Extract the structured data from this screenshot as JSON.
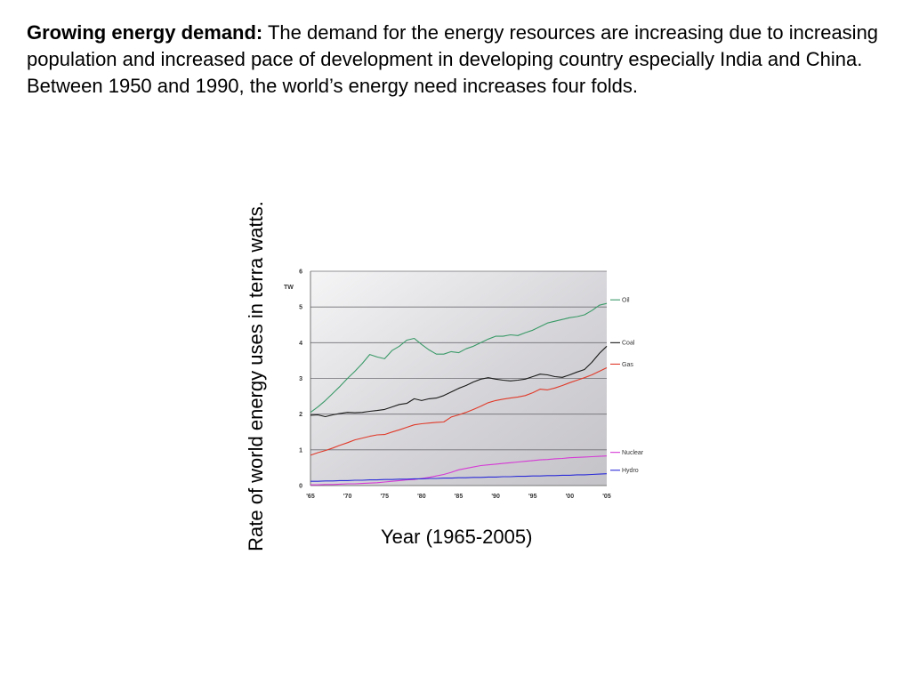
{
  "paragraph": {
    "heading": "Growing energy demand:",
    "text": " The demand for the energy resources are increasing due to increasing population and increased pace of development in developing country especially India and China. Between 1950 and 1990, the world’s energy need increases four folds."
  },
  "ylabel": "Rate of world energy uses in terra watts.",
  "xlabel": "Year (1965-2005)",
  "chart_data": {
    "type": "line",
    "unit_label": "TW",
    "xlim": [
      1965,
      2005
    ],
    "ylim": [
      0,
      6
    ],
    "grid": true,
    "legend": "right, at each line end",
    "x_ticks": [
      "'65",
      "'70",
      "'75",
      "'80",
      "'85",
      "'90",
      "'95",
      "'00",
      "'05"
    ],
    "y_ticks": [
      "0",
      "1",
      "2",
      "3",
      "4",
      "5",
      "6"
    ],
    "x": [
      1965,
      1966,
      1967,
      1968,
      1969,
      1970,
      1971,
      1972,
      1973,
      1974,
      1975,
      1976,
      1977,
      1978,
      1979,
      1980,
      1981,
      1982,
      1983,
      1984,
      1985,
      1986,
      1987,
      1988,
      1989,
      1990,
      1991,
      1992,
      1993,
      1994,
      1995,
      1996,
      1997,
      1998,
      1999,
      2000,
      2001,
      2002,
      2003,
      2004,
      2005
    ],
    "series": [
      {
        "name": "Oil",
        "color": "#3a9a68",
        "values": [
          2.05,
          2.2,
          2.38,
          2.58,
          2.78,
          3.0,
          3.2,
          3.42,
          3.67,
          3.6,
          3.55,
          3.78,
          3.9,
          4.07,
          4.12,
          3.95,
          3.8,
          3.68,
          3.68,
          3.75,
          3.72,
          3.83,
          3.9,
          4.0,
          4.1,
          4.18,
          4.18,
          4.22,
          4.2,
          4.28,
          4.35,
          4.45,
          4.55,
          4.6,
          4.65,
          4.7,
          4.73,
          4.78,
          4.9,
          5.05,
          5.1
        ]
      },
      {
        "name": "Coal",
        "color": "#1a1a1a",
        "values": [
          1.97,
          1.98,
          1.93,
          1.98,
          2.02,
          2.05,
          2.04,
          2.05,
          2.08,
          2.1,
          2.13,
          2.2,
          2.27,
          2.3,
          2.43,
          2.38,
          2.43,
          2.45,
          2.52,
          2.62,
          2.72,
          2.8,
          2.9,
          2.98,
          3.02,
          2.98,
          2.95,
          2.93,
          2.95,
          2.98,
          3.05,
          3.12,
          3.1,
          3.05,
          3.03,
          3.1,
          3.18,
          3.25,
          3.45,
          3.7,
          3.9
        ]
      },
      {
        "name": "Gas",
        "color": "#e03a2a",
        "values": [
          0.85,
          0.92,
          0.98,
          1.05,
          1.13,
          1.2,
          1.28,
          1.33,
          1.38,
          1.42,
          1.43,
          1.5,
          1.56,
          1.63,
          1.7,
          1.73,
          1.75,
          1.77,
          1.78,
          1.92,
          1.98,
          2.05,
          2.13,
          2.22,
          2.32,
          2.38,
          2.42,
          2.45,
          2.48,
          2.52,
          2.6,
          2.7,
          2.68,
          2.73,
          2.8,
          2.88,
          2.95,
          3.02,
          3.1,
          3.2,
          3.3
        ]
      },
      {
        "name": "Nuclear",
        "color": "#d53ad5",
        "values": [
          0.02,
          0.02,
          0.03,
          0.03,
          0.04,
          0.05,
          0.05,
          0.06,
          0.07,
          0.08,
          0.1,
          0.12,
          0.14,
          0.16,
          0.17,
          0.2,
          0.23,
          0.27,
          0.31,
          0.37,
          0.44,
          0.48,
          0.52,
          0.56,
          0.58,
          0.6,
          0.62,
          0.64,
          0.66,
          0.68,
          0.7,
          0.72,
          0.73,
          0.75,
          0.76,
          0.78,
          0.79,
          0.8,
          0.81,
          0.82,
          0.83
        ]
      },
      {
        "name": "Hydro",
        "color": "#2a2ad8",
        "values": [
          0.12,
          0.12,
          0.13,
          0.13,
          0.14,
          0.14,
          0.15,
          0.15,
          0.16,
          0.16,
          0.17,
          0.17,
          0.18,
          0.18,
          0.19,
          0.19,
          0.2,
          0.2,
          0.21,
          0.21,
          0.22,
          0.22,
          0.23,
          0.23,
          0.24,
          0.24,
          0.25,
          0.25,
          0.26,
          0.26,
          0.27,
          0.27,
          0.28,
          0.28,
          0.29,
          0.29,
          0.3,
          0.3,
          0.31,
          0.32,
          0.33
        ]
      }
    ]
  }
}
